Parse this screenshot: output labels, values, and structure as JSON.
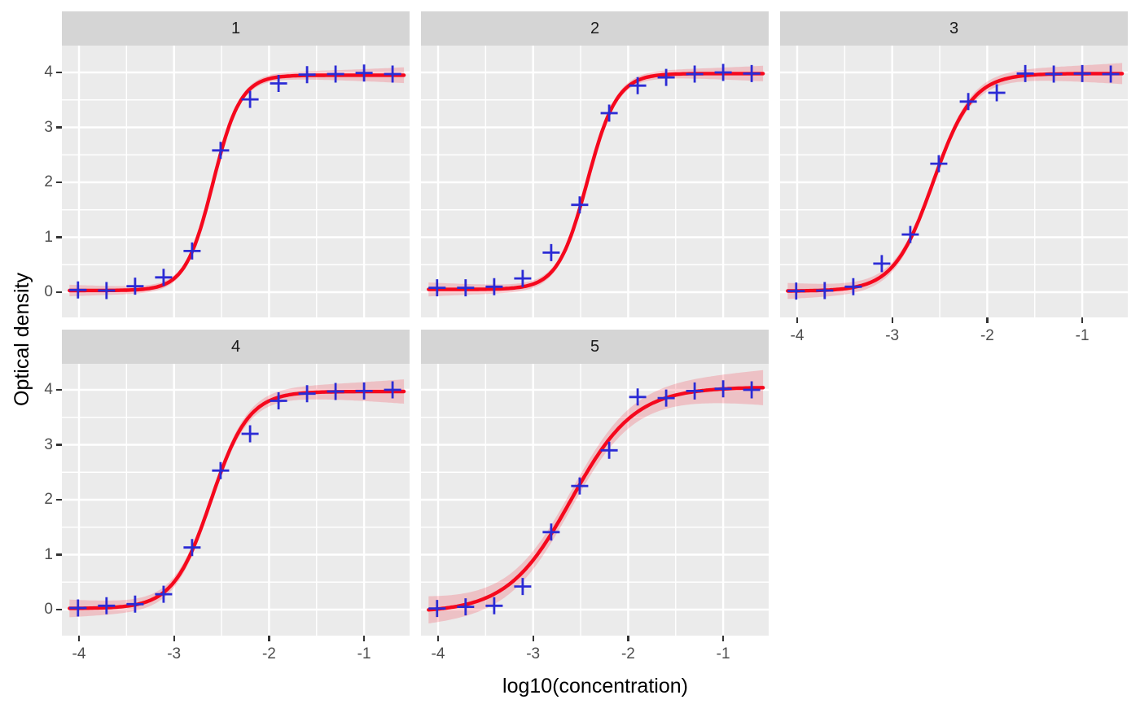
{
  "figure": {
    "background": "#FFFFFF",
    "panel_bg": "#EBEBEB",
    "strip_bg": "#D5D5D5",
    "grid_color": "#FFFFFF",
    "tick_color": "#333333",
    "axis_text_color": "#4D4D4D",
    "strip_text_color": "#1A1A1A",
    "title_color": "#000000"
  },
  "chart_data": {
    "type": "scatter",
    "subtype": "faceted-dose-response-curves",
    "title": "",
    "xlabel": "log10(concentration)",
    "ylabel": "Optical density",
    "x_ticks": [
      -4,
      -3,
      -2,
      -1
    ],
    "y_ticks": [
      0,
      1,
      2,
      3,
      4
    ],
    "x_range": [
      -4.18,
      -0.52
    ],
    "y_range": [
      -0.47,
      4.49
    ],
    "grid": "on",
    "legend_position": "none",
    "point_color": "#2B2BD5",
    "line_color": "#F5081D",
    "ribbon_color": "rgba(248,5,29,0.18)",
    "point_shape": "plus",
    "x": [
      -4.01,
      -3.71,
      -3.41,
      -3.11,
      -2.81,
      -2.51,
      -2.2,
      -1.9,
      -1.6,
      -1.3,
      -1.0,
      -0.7
    ],
    "curve_x_range": [
      -4.1,
      -0.58
    ],
    "facets": [
      {
        "label": "1",
        "y": [
          0.04,
          0.03,
          0.11,
          0.27,
          0.75,
          2.58,
          3.51,
          3.8,
          3.96,
          3.97,
          3.99,
          3.97
        ],
        "fit": {
          "bottom": 0.03,
          "top": 3.95,
          "slope": 3.0,
          "log_ec50": -2.59
        },
        "ribbon": {
          "w0": 0.055,
          "q": 0.9
        }
      },
      {
        "label": "2",
        "y": [
          0.08,
          0.08,
          0.1,
          0.25,
          0.72,
          1.59,
          3.26,
          3.76,
          3.91,
          3.97,
          4.0,
          3.98
        ],
        "fit": {
          "bottom": 0.05,
          "top": 3.98,
          "slope": 2.8,
          "log_ec50": -2.43
        },
        "ribbon": {
          "w0": 0.06,
          "q": 0.9
        }
      },
      {
        "label": "3",
        "y": [
          0.02,
          0.03,
          0.1,
          0.52,
          1.05,
          2.34,
          3.47,
          3.63,
          3.98,
          3.97,
          3.98,
          3.97
        ],
        "fit": {
          "bottom": 0.02,
          "top": 3.98,
          "slope": 2.1,
          "log_ec50": -2.57
        },
        "ribbon": {
          "w0": 0.08,
          "q": 0.8
        }
      },
      {
        "label": "4",
        "y": [
          0.03,
          0.07,
          0.1,
          0.28,
          1.13,
          2.53,
          3.2,
          3.8,
          3.93,
          3.97,
          3.98,
          4.0
        ],
        "fit": {
          "bottom": 0.02,
          "top": 3.97,
          "slope": 2.2,
          "log_ec50": -2.61
        },
        "ribbon": {
          "w0": 0.09,
          "q": 0.8
        }
      },
      {
        "label": "5",
        "y": [
          0.02,
          0.05,
          0.07,
          0.42,
          1.41,
          2.25,
          2.9,
          3.87,
          3.85,
          3.98,
          4.02,
          4.0
        ],
        "fit": {
          "bottom": -0.05,
          "top": 4.05,
          "slope": 1.3,
          "log_ec50": -2.6
        },
        "ribbon": {
          "w0": 0.16,
          "q": 0.55
        }
      }
    ]
  }
}
